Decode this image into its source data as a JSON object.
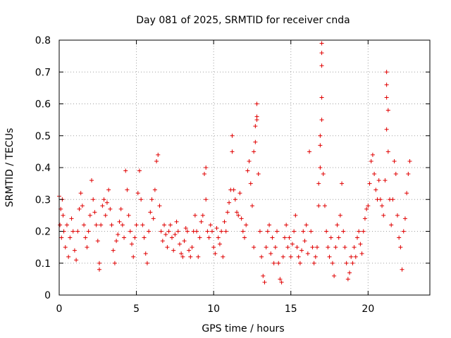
{
  "chart_data": {
    "type": "scatter",
    "title": "Day 081 of 2025, SRMTID for receiver cnda",
    "xlabel": "GPS time / hours",
    "ylabel": "SRMTID / TECUs",
    "xlim": [
      0,
      24
    ],
    "ylim": [
      0,
      0.8
    ],
    "x_ticks": [
      0,
      5,
      10,
      15,
      20
    ],
    "x_tick_labels": [
      "0",
      "5",
      "10",
      "15",
      "20"
    ],
    "y_ticks": [
      0,
      0.1,
      0.2,
      0.3,
      0.4,
      0.5,
      0.6,
      0.7,
      0.8
    ],
    "y_tick_labels": [
      "0",
      "0.1",
      "0.2",
      "0.3",
      "0.4",
      "0.5",
      "0.6",
      "0.7",
      "0.8"
    ],
    "grid": true,
    "marker": "+",
    "color": "#e00000",
    "series": [
      {
        "name": "SRMTID",
        "points": [
          [
            0.0,
            0.31
          ],
          [
            0.05,
            0.22
          ],
          [
            0.1,
            0.27
          ],
          [
            0.15,
            0.18
          ],
          [
            0.2,
            0.3
          ],
          [
            0.25,
            0.25
          ],
          [
            0.3,
            0.2
          ],
          [
            0.4,
            0.15
          ],
          [
            0.5,
            0.22
          ],
          [
            0.6,
            0.12
          ],
          [
            0.7,
            0.18
          ],
          [
            0.8,
            0.24
          ],
          [
            0.9,
            0.2
          ],
          [
            1.0,
            0.14
          ],
          [
            1.1,
            0.11
          ],
          [
            1.2,
            0.2
          ],
          [
            1.3,
            0.27
          ],
          [
            1.4,
            0.32
          ],
          [
            1.5,
            0.28
          ],
          [
            1.6,
            0.22
          ],
          [
            1.7,
            0.18
          ],
          [
            1.8,
            0.15
          ],
          [
            1.9,
            0.2
          ],
          [
            2.0,
            0.25
          ],
          [
            2.1,
            0.36
          ],
          [
            2.2,
            0.3
          ],
          [
            2.3,
            0.26
          ],
          [
            2.4,
            0.22
          ],
          [
            2.5,
            0.17
          ],
          [
            2.6,
            0.1
          ],
          [
            2.6,
            0.08
          ],
          [
            2.7,
            0.22
          ],
          [
            2.8,
            0.28
          ],
          [
            2.9,
            0.3
          ],
          [
            3.0,
            0.25
          ],
          [
            3.1,
            0.29
          ],
          [
            3.2,
            0.33
          ],
          [
            3.3,
            0.27
          ],
          [
            3.4,
            0.22
          ],
          [
            3.5,
            0.14
          ],
          [
            3.6,
            0.1
          ],
          [
            3.7,
            0.17
          ],
          [
            3.8,
            0.19
          ],
          [
            3.9,
            0.23
          ],
          [
            4.0,
            0.27
          ],
          [
            4.1,
            0.22
          ],
          [
            4.2,
            0.18
          ],
          [
            4.3,
            0.39
          ],
          [
            4.4,
            0.33
          ],
          [
            4.5,
            0.25
          ],
          [
            4.6,
            0.2
          ],
          [
            4.7,
            0.16
          ],
          [
            4.8,
            0.12
          ],
          [
            4.9,
            0.18
          ],
          [
            5.0,
            0.22
          ],
          [
            5.1,
            0.32
          ],
          [
            5.2,
            0.39
          ],
          [
            5.3,
            0.3
          ],
          [
            5.4,
            0.22
          ],
          [
            5.5,
            0.18
          ],
          [
            5.6,
            0.13
          ],
          [
            5.7,
            0.1
          ],
          [
            5.8,
            0.2
          ],
          [
            5.9,
            0.26
          ],
          [
            6.0,
            0.3
          ],
          [
            6.1,
            0.24
          ],
          [
            6.2,
            0.33
          ],
          [
            6.3,
            0.42
          ],
          [
            6.4,
            0.44
          ],
          [
            6.5,
            0.28
          ],
          [
            6.6,
            0.2
          ],
          [
            6.7,
            0.17
          ],
          [
            6.8,
            0.22
          ],
          [
            6.9,
            0.19
          ],
          [
            7.0,
            0.15
          ],
          [
            7.1,
            0.2
          ],
          [
            7.2,
            0.22
          ],
          [
            7.3,
            0.18
          ],
          [
            7.4,
            0.14
          ],
          [
            7.5,
            0.19
          ],
          [
            7.6,
            0.23
          ],
          [
            7.7,
            0.2
          ],
          [
            7.8,
            0.16
          ],
          [
            7.9,
            0.13
          ],
          [
            8.0,
            0.12
          ],
          [
            8.1,
            0.17
          ],
          [
            8.2,
            0.21
          ],
          [
            8.3,
            0.2
          ],
          [
            8.4,
            0.14
          ],
          [
            8.5,
            0.12
          ],
          [
            8.6,
            0.15
          ],
          [
            8.7,
            0.2
          ],
          [
            8.8,
            0.25
          ],
          [
            8.9,
            0.2
          ],
          [
            9.0,
            0.12
          ],
          [
            9.1,
            0.18
          ],
          [
            9.2,
            0.23
          ],
          [
            9.3,
            0.25
          ],
          [
            9.4,
            0.38
          ],
          [
            9.5,
            0.4
          ],
          [
            9.5,
            0.3
          ],
          [
            9.6,
            0.2
          ],
          [
            9.7,
            0.18
          ],
          [
            9.8,
            0.22
          ],
          [
            9.9,
            0.2
          ],
          [
            10.0,
            0.15
          ],
          [
            10.1,
            0.13
          ],
          [
            10.2,
            0.21
          ],
          [
            10.3,
            0.18
          ],
          [
            10.4,
            0.16
          ],
          [
            10.5,
            0.2
          ],
          [
            10.6,
            0.12
          ],
          [
            10.7,
            0.23
          ],
          [
            10.8,
            0.2
          ],
          [
            10.9,
            0.26
          ],
          [
            11.0,
            0.29
          ],
          [
            11.1,
            0.33
          ],
          [
            11.2,
            0.45
          ],
          [
            11.2,
            0.5
          ],
          [
            11.3,
            0.33
          ],
          [
            11.4,
            0.3
          ],
          [
            11.5,
            0.26
          ],
          [
            11.6,
            0.25
          ],
          [
            11.7,
            0.32
          ],
          [
            11.8,
            0.24
          ],
          [
            11.9,
            0.2
          ],
          [
            12.0,
            0.18
          ],
          [
            12.1,
            0.22
          ],
          [
            12.2,
            0.39
          ],
          [
            12.3,
            0.42
          ],
          [
            12.4,
            0.35
          ],
          [
            12.5,
            0.28
          ],
          [
            12.6,
            0.15
          ],
          [
            12.6,
            0.45
          ],
          [
            12.7,
            0.48
          ],
          [
            12.7,
            0.53
          ],
          [
            12.8,
            0.6
          ],
          [
            12.8,
            0.56
          ],
          [
            12.8,
            0.55
          ],
          [
            12.9,
            0.38
          ],
          [
            13.0,
            0.2
          ],
          [
            13.1,
            0.12
          ],
          [
            13.2,
            0.06
          ],
          [
            13.3,
            0.04
          ],
          [
            13.4,
            0.15
          ],
          [
            13.5,
            0.2
          ],
          [
            13.6,
            0.22
          ],
          [
            13.7,
            0.13
          ],
          [
            13.8,
            0.18
          ],
          [
            13.9,
            0.1
          ],
          [
            14.0,
            0.15
          ],
          [
            14.1,
            0.2
          ],
          [
            14.2,
            0.1
          ],
          [
            14.3,
            0.05
          ],
          [
            14.4,
            0.04
          ],
          [
            14.5,
            0.12
          ],
          [
            14.6,
            0.18
          ],
          [
            14.7,
            0.22
          ],
          [
            14.8,
            0.15
          ],
          [
            14.9,
            0.18
          ],
          [
            15.0,
            0.12
          ],
          [
            15.1,
            0.16
          ],
          [
            15.2,
            0.2
          ],
          [
            15.3,
            0.25
          ],
          [
            15.4,
            0.15
          ],
          [
            15.5,
            0.12
          ],
          [
            15.6,
            0.1
          ],
          [
            15.7,
            0.14
          ],
          [
            15.8,
            0.2
          ],
          [
            15.9,
            0.17
          ],
          [
            16.0,
            0.22
          ],
          [
            16.1,
            0.13
          ],
          [
            16.2,
            0.45
          ],
          [
            16.3,
            0.2
          ],
          [
            16.4,
            0.15
          ],
          [
            16.5,
            0.1
          ],
          [
            16.6,
            0.12
          ],
          [
            16.7,
            0.15
          ],
          [
            16.8,
            0.28
          ],
          [
            16.8,
            0.35
          ],
          [
            16.9,
            0.4
          ],
          [
            16.9,
            0.47
          ],
          [
            16.9,
            0.5
          ],
          [
            17.0,
            0.62
          ],
          [
            17.0,
            0.55
          ],
          [
            17.0,
            0.79
          ],
          [
            17.0,
            0.76
          ],
          [
            17.0,
            0.72
          ],
          [
            17.1,
            0.38
          ],
          [
            17.2,
            0.28
          ],
          [
            17.3,
            0.2
          ],
          [
            17.4,
            0.15
          ],
          [
            17.5,
            0.12
          ],
          [
            17.6,
            0.18
          ],
          [
            17.7,
            0.1
          ],
          [
            17.8,
            0.06
          ],
          [
            17.9,
            0.15
          ],
          [
            18.0,
            0.22
          ],
          [
            18.1,
            0.18
          ],
          [
            18.2,
            0.25
          ],
          [
            18.3,
            0.35
          ],
          [
            18.4,
            0.2
          ],
          [
            18.5,
            0.15
          ],
          [
            18.6,
            0.1
          ],
          [
            18.7,
            0.05
          ],
          [
            18.8,
            0.07
          ],
          [
            18.9,
            0.12
          ],
          [
            19.0,
            0.1
          ],
          [
            19.1,
            0.15
          ],
          [
            19.2,
            0.12
          ],
          [
            19.3,
            0.18
          ],
          [
            19.4,
            0.2
          ],
          [
            19.5,
            0.16
          ],
          [
            19.6,
            0.13
          ],
          [
            19.7,
            0.2
          ],
          [
            19.8,
            0.24
          ],
          [
            19.9,
            0.27
          ],
          [
            20.0,
            0.28
          ],
          [
            20.1,
            0.35
          ],
          [
            20.2,
            0.42
          ],
          [
            20.3,
            0.44
          ],
          [
            20.4,
            0.38
          ],
          [
            20.5,
            0.33
          ],
          [
            20.6,
            0.3
          ],
          [
            20.7,
            0.36
          ],
          [
            20.8,
            0.3
          ],
          [
            20.9,
            0.28
          ],
          [
            21.0,
            0.25
          ],
          [
            21.1,
            0.36
          ],
          [
            21.2,
            0.52
          ],
          [
            21.2,
            0.62
          ],
          [
            21.2,
            0.7
          ],
          [
            21.2,
            0.66
          ],
          [
            21.3,
            0.58
          ],
          [
            21.3,
            0.45
          ],
          [
            21.4,
            0.3
          ],
          [
            21.5,
            0.22
          ],
          [
            21.6,
            0.3
          ],
          [
            21.7,
            0.42
          ],
          [
            21.8,
            0.38
          ],
          [
            21.9,
            0.25
          ],
          [
            22.0,
            0.18
          ],
          [
            22.1,
            0.15
          ],
          [
            22.2,
            0.08
          ],
          [
            22.3,
            0.2
          ],
          [
            22.4,
            0.24
          ],
          [
            22.5,
            0.32
          ],
          [
            22.6,
            0.38
          ],
          [
            22.7,
            0.42
          ]
        ]
      }
    ]
  }
}
